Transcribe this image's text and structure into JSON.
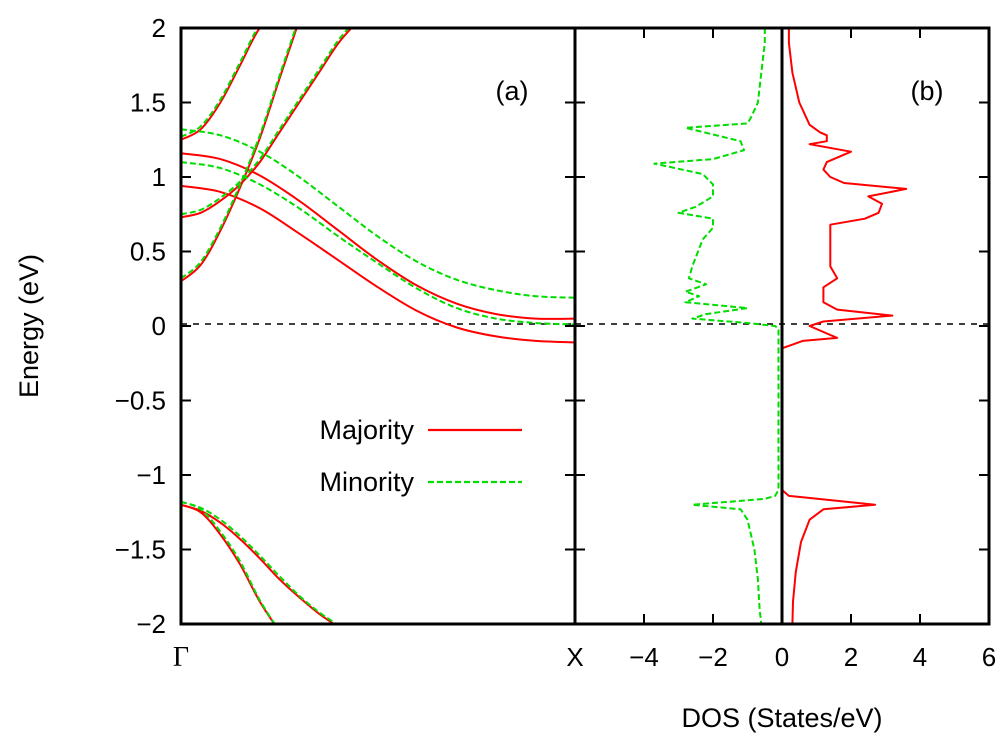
{
  "chart_data": [
    {
      "panel": "(a)",
      "type": "line",
      "ylabel": "Energy (eV)",
      "ylim": [
        -2,
        2
      ],
      "yticks": [
        "2",
        "1.5",
        "1",
        "0.5",
        "0",
        "−0.5",
        "−1",
        "−1.5",
        "−2"
      ],
      "xticks": [
        "Γ",
        "X"
      ],
      "xlim": [
        0,
        1
      ],
      "fermi_level": 0,
      "legend": {
        "placement": "lower-left",
        "entries": [
          "Majority",
          "Minority"
        ]
      },
      "series": [
        {
          "name": "Majority",
          "color": "#ff0000",
          "style": "solid",
          "bands": [
            {
              "x": [
                0,
                0.05,
                0.1,
                0.15,
                0.2,
                0.25
              ],
              "y": [
                -1.2,
                -1.25,
                -1.4,
                -1.6,
                -1.85,
                -2.05
              ]
            },
            {
              "x": [
                0,
                0.05,
                0.1,
                0.15,
                0.2,
                0.25,
                0.3,
                0.35,
                0.4,
                0.45
              ],
              "y": [
                -1.2,
                -1.24,
                -1.32,
                -1.43,
                -1.56,
                -1.7,
                -1.82,
                -1.93,
                -2.02,
                -2.1
              ]
            },
            {
              "x": [
                0,
                0.1,
                0.2,
                0.3,
                0.4,
                0.5,
                0.6,
                0.7,
                0.8,
                0.9,
                1.0
              ],
              "y": [
                0.94,
                0.9,
                0.79,
                0.62,
                0.44,
                0.26,
                0.1,
                -0.01,
                -0.07,
                -0.1,
                -0.11
              ]
            },
            {
              "x": [
                0,
                0.1,
                0.2,
                0.3,
                0.4,
                0.5,
                0.6,
                0.7,
                0.8,
                0.9,
                1.0
              ],
              "y": [
                1.16,
                1.12,
                1.01,
                0.84,
                0.64,
                0.44,
                0.27,
                0.15,
                0.08,
                0.05,
                0.05
              ]
            },
            {
              "x": [
                0,
                0.05,
                0.1,
                0.15,
                0.2,
                0.25,
                0.3
              ],
              "y": [
                0.3,
                0.41,
                0.64,
                0.93,
                1.26,
                1.66,
                2.05
              ]
            },
            {
              "x": [
                0,
                0.05,
                0.1,
                0.15,
                0.2,
                0.25,
                0.3,
                0.35,
                0.4,
                0.45
              ],
              "y": [
                0.73,
                0.76,
                0.84,
                0.95,
                1.1,
                1.3,
                1.5,
                1.7,
                1.9,
                2.05
              ]
            },
            {
              "x": [
                0,
                0.05,
                0.1,
                0.15,
                0.2,
                0.25
              ],
              "y": [
                1.25,
                1.32,
                1.5,
                1.75,
                2.0,
                2.1
              ]
            }
          ]
        },
        {
          "name": "Minority",
          "color": "#00dd00",
          "style": "dashed",
          "bands": [
            {
              "x": [
                0,
                0.05,
                0.1,
                0.15,
                0.2,
                0.25
              ],
              "y": [
                -1.18,
                -1.23,
                -1.38,
                -1.58,
                -1.84,
                -2.05
              ]
            },
            {
              "x": [
                0,
                0.05,
                0.1,
                0.15,
                0.2,
                0.25,
                0.3,
                0.35,
                0.4,
                0.45
              ],
              "y": [
                -1.18,
                -1.22,
                -1.3,
                -1.41,
                -1.54,
                -1.68,
                -1.81,
                -1.92,
                -2.01,
                -2.1
              ]
            },
            {
              "x": [
                0,
                0.1,
                0.2,
                0.3,
                0.4,
                0.5,
                0.6,
                0.7,
                0.8,
                0.9,
                1.0
              ],
              "y": [
                1.1,
                1.06,
                0.95,
                0.79,
                0.6,
                0.42,
                0.25,
                0.12,
                0.05,
                0.02,
                0.01
              ]
            },
            {
              "x": [
                0,
                0.1,
                0.2,
                0.3,
                0.4,
                0.5,
                0.6,
                0.7,
                0.8,
                0.9,
                1.0
              ],
              "y": [
                1.32,
                1.28,
                1.17,
                1.0,
                0.8,
                0.6,
                0.43,
                0.31,
                0.24,
                0.2,
                0.19
              ]
            },
            {
              "x": [
                0,
                0.05,
                0.1,
                0.15,
                0.2,
                0.25,
                0.3
              ],
              "y": [
                0.32,
                0.43,
                0.66,
                0.95,
                1.28,
                1.68,
                2.07
              ]
            },
            {
              "x": [
                0,
                0.05,
                0.1,
                0.15,
                0.2,
                0.25,
                0.3,
                0.35,
                0.4,
                0.45
              ],
              "y": [
                0.75,
                0.78,
                0.86,
                0.97,
                1.12,
                1.32,
                1.52,
                1.72,
                1.92,
                2.07
              ]
            },
            {
              "x": [
                0,
                0.05,
                0.1,
                0.15,
                0.2,
                0.25
              ],
              "y": [
                1.27,
                1.34,
                1.52,
                1.77,
                2.02,
                2.12
              ]
            }
          ]
        }
      ]
    },
    {
      "panel": "(b)",
      "type": "line",
      "xlabel": "DOS (States/eV)",
      "xlim": [
        -6,
        6
      ],
      "xticks": [
        "−4",
        "−2",
        "0",
        "2",
        "4",
        "6"
      ],
      "xtick_values": [
        -4,
        -2,
        0,
        2,
        4,
        6
      ],
      "ylim": [
        -2,
        2
      ],
      "fermi_level": 0,
      "series": [
        {
          "name": "Majority",
          "color": "#ff0000",
          "style": "solid",
          "points": [
            [
              0.2,
              2.0
            ],
            [
              0.2,
              1.9
            ],
            [
              0.3,
              1.7
            ],
            [
              0.5,
              1.5
            ],
            [
              0.8,
              1.35
            ],
            [
              1.1,
              1.3
            ],
            [
              1.3,
              1.28
            ],
            [
              1.3,
              1.24
            ],
            [
              0.8,
              1.22
            ],
            [
              2.0,
              1.17
            ],
            [
              1.3,
              1.1
            ],
            [
              1.2,
              1.05
            ],
            [
              1.4,
              1.0
            ],
            [
              1.8,
              0.96
            ],
            [
              3.6,
              0.92
            ],
            [
              2.5,
              0.87
            ],
            [
              2.9,
              0.82
            ],
            [
              2.8,
              0.76
            ],
            [
              2.4,
              0.72
            ],
            [
              1.4,
              0.68
            ],
            [
              1.4,
              0.4
            ],
            [
              1.6,
              0.32
            ],
            [
              1.2,
              0.26
            ],
            [
              1.2,
              0.16
            ],
            [
              1.6,
              0.11
            ],
            [
              3.2,
              0.07
            ],
            [
              1.2,
              0.03
            ],
            [
              0.8,
              0.0
            ],
            [
              1.0,
              -0.02
            ],
            [
              1.6,
              -0.08
            ],
            [
              0.6,
              -0.1
            ],
            [
              0.0,
              -0.15
            ],
            [
              0.0,
              -1.1
            ],
            [
              0.2,
              -1.14
            ],
            [
              0.6,
              -1.15
            ],
            [
              2.7,
              -1.2
            ],
            [
              1.2,
              -1.23
            ],
            [
              0.8,
              -1.3
            ],
            [
              0.55,
              -1.45
            ],
            [
              0.4,
              -1.65
            ],
            [
              0.32,
              -1.85
            ],
            [
              0.3,
              -2.0
            ]
          ]
        },
        {
          "name": "Minority",
          "color": "#00dd00",
          "style": "dashed",
          "points": [
            [
              -0.5,
              2.0
            ],
            [
              -0.5,
              1.9
            ],
            [
              -0.6,
              1.7
            ],
            [
              -0.7,
              1.5
            ],
            [
              -0.9,
              1.4
            ],
            [
              -1.0,
              1.36
            ],
            [
              -2.8,
              1.33
            ],
            [
              -1.2,
              1.24
            ],
            [
              -1.1,
              1.18
            ],
            [
              -2.0,
              1.12
            ],
            [
              -3.7,
              1.09
            ],
            [
              -2.3,
              1.02
            ],
            [
              -2.0,
              0.95
            ],
            [
              -2.0,
              0.87
            ],
            [
              -2.5,
              0.8
            ],
            [
              -3.0,
              0.76
            ],
            [
              -2.0,
              0.72
            ],
            [
              -2.0,
              0.66
            ],
            [
              -2.3,
              0.58
            ],
            [
              -2.6,
              0.4
            ],
            [
              -2.7,
              0.32
            ],
            [
              -2.2,
              0.28
            ],
            [
              -2.8,
              0.23
            ],
            [
              -2.4,
              0.2
            ],
            [
              -2.8,
              0.16
            ],
            [
              -1.0,
              0.12
            ],
            [
              -2.2,
              0.08
            ],
            [
              -2.6,
              0.05
            ],
            [
              -1.0,
              0.02
            ],
            [
              -0.2,
              0.0
            ],
            [
              -0.1,
              -0.02
            ],
            [
              -0.1,
              -1.1
            ],
            [
              -0.2,
              -1.14
            ],
            [
              -0.5,
              -1.16
            ],
            [
              -2.6,
              -1.2
            ],
            [
              -1.2,
              -1.23
            ],
            [
              -1.0,
              -1.3
            ],
            [
              -0.8,
              -1.5
            ],
            [
              -0.7,
              -1.7
            ],
            [
              -0.65,
              -1.9
            ],
            [
              -0.6,
              -2.0
            ]
          ]
        }
      ]
    }
  ]
}
